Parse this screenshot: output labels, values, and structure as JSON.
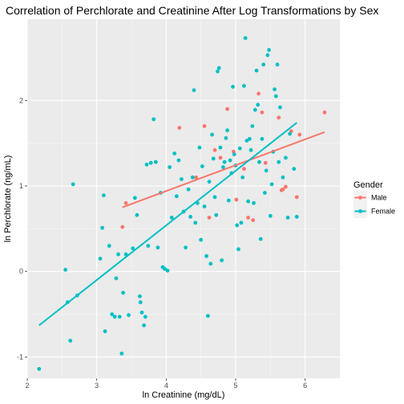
{
  "chart_data": {
    "type": "scatter",
    "title": "Correlation of Perchlorate and Creatinine After Log Transformations by Sex",
    "xlabel": "ln Creatinine (mg/dL)",
    "ylabel": "ln Perchlorate (ng/mL)",
    "xlim": [
      2.0,
      6.5
    ],
    "ylim": [
      -1.25,
      2.95
    ],
    "x_ticks": [
      2,
      3,
      4,
      5,
      6
    ],
    "y_ticks": [
      -1,
      0,
      1,
      2
    ],
    "grid": true,
    "legend": {
      "title": "Gender",
      "placement": "right"
    },
    "colors": {
      "Male": "#F8766D",
      "Female": "#00BFC4"
    },
    "series": [
      {
        "name": "Male",
        "color": "#F8766D",
        "points": [
          [
            3.37,
            0.52
          ],
          [
            3.42,
            0.8
          ],
          [
            4.19,
            1.68
          ],
          [
            4.43,
            1.1
          ],
          [
            4.55,
            1.7
          ],
          [
            4.62,
            0.63
          ],
          [
            4.7,
            1.42
          ],
          [
            4.78,
            1.33
          ],
          [
            4.88,
            1.9
          ],
          [
            4.97,
            1.4
          ],
          [
            5.01,
            0.84
          ],
          [
            5.12,
            1.2
          ],
          [
            5.18,
            0.63
          ],
          [
            5.25,
            0.6
          ],
          [
            5.33,
            2.08
          ],
          [
            5.38,
            1.86
          ],
          [
            5.43,
            1.27
          ],
          [
            5.62,
            1.8
          ],
          [
            5.66,
            0.95
          ],
          [
            5.68,
            0.96
          ],
          [
            5.72,
            0.99
          ],
          [
            5.8,
            1.64
          ],
          [
            5.88,
            0.87
          ],
          [
            5.92,
            1.6
          ],
          [
            6.28,
            1.86
          ]
        ],
        "fit_line": [
          [
            3.37,
            0.75
          ],
          [
            6.28,
            1.63
          ]
        ]
      },
      {
        "name": "Female",
        "color": "#00BFC4",
        "points": [
          [
            2.17,
            -1.14
          ],
          [
            2.55,
            0.02
          ],
          [
            2.58,
            -0.36
          ],
          [
            2.62,
            -0.81
          ],
          [
            2.66,
            1.02
          ],
          [
            2.72,
            -0.28
          ],
          [
            3.05,
            0.15
          ],
          [
            3.08,
            0.51
          ],
          [
            3.1,
            0.89
          ],
          [
            3.12,
            -0.7
          ],
          [
            3.18,
            0.3
          ],
          [
            3.22,
            -0.5
          ],
          [
            3.26,
            -0.53
          ],
          [
            3.28,
            -0.08
          ],
          [
            3.31,
            0.2
          ],
          [
            3.33,
            -0.53
          ],
          [
            3.36,
            -0.96
          ],
          [
            3.38,
            -0.25
          ],
          [
            3.42,
            0.2
          ],
          [
            3.46,
            -0.51
          ],
          [
            3.52,
            0.27
          ],
          [
            3.55,
            0.86
          ],
          [
            3.58,
            0.66
          ],
          [
            3.62,
            -0.29
          ],
          [
            3.63,
            -0.36
          ],
          [
            3.65,
            -0.48
          ],
          [
            3.68,
            -0.63
          ],
          [
            3.7,
            -0.53
          ],
          [
            3.72,
            1.25
          ],
          [
            3.74,
            0.3
          ],
          [
            3.78,
            1.27
          ],
          [
            3.82,
            1.78
          ],
          [
            3.85,
            1.28
          ],
          [
            3.88,
            0.28
          ],
          [
            3.92,
            0.92
          ],
          [
            3.95,
            0.05
          ],
          [
            3.98,
            0.03
          ],
          [
            4.02,
            0.01
          ],
          [
            4.05,
            1.22
          ],
          [
            4.08,
            0.63
          ],
          [
            4.12,
            1.38
          ],
          [
            4.15,
            0.88
          ],
          [
            4.18,
            1.3
          ],
          [
            4.22,
            1.08
          ],
          [
            4.25,
            0.7
          ],
          [
            4.28,
            0.28
          ],
          [
            4.32,
            0.96
          ],
          [
            4.35,
            0.64
          ],
          [
            4.38,
            1.1
          ],
          [
            4.4,
            2.12
          ],
          [
            4.42,
            0.57
          ],
          [
            4.45,
            0.8
          ],
          [
            4.48,
            1.45
          ],
          [
            4.5,
            0.37
          ],
          [
            4.52,
            1.23
          ],
          [
            4.55,
            0.76
          ],
          [
            4.58,
            0.18
          ],
          [
            4.6,
            -0.52
          ],
          [
            4.62,
            1.05
          ],
          [
            4.64,
            0.09
          ],
          [
            4.66,
            1.6
          ],
          [
            4.68,
            1.32
          ],
          [
            4.7,
            0.87
          ],
          [
            4.72,
            0.66
          ],
          [
            4.74,
            2.34
          ],
          [
            4.76,
            2.38
          ],
          [
            4.78,
            1.45
          ],
          [
            4.8,
            0.13
          ],
          [
            4.82,
            1.22
          ],
          [
            4.84,
            1.28
          ],
          [
            4.86,
            1.56
          ],
          [
            4.88,
            1.65
          ],
          [
            4.9,
            0.83
          ],
          [
            4.92,
            1.3
          ],
          [
            4.94,
            1.15
          ],
          [
            4.96,
            2.16
          ],
          [
            4.98,
            1.37
          ],
          [
            5.0,
            1.24
          ],
          [
            5.02,
            0.54
          ],
          [
            5.04,
            0.26
          ],
          [
            5.06,
            1.44
          ],
          [
            5.08,
            0.57
          ],
          [
            5.1,
            1.1
          ],
          [
            5.12,
            2.17
          ],
          [
            5.14,
            2.73
          ],
          [
            5.16,
            1.53
          ],
          [
            5.18,
            0.82
          ],
          [
            5.2,
            1.55
          ],
          [
            5.22,
            1.42
          ],
          [
            5.24,
            1.7
          ],
          [
            5.26,
            0.8
          ],
          [
            5.28,
            1.89
          ],
          [
            5.3,
            2.35
          ],
          [
            5.32,
            1.95
          ],
          [
            5.34,
            1.28
          ],
          [
            5.36,
            0.38
          ],
          [
            5.38,
            1.55
          ],
          [
            5.4,
            2.42
          ],
          [
            5.42,
            0.92
          ],
          [
            5.44,
            1.18
          ],
          [
            5.46,
            2.53
          ],
          [
            5.48,
            2.59
          ],
          [
            5.5,
            0.65
          ],
          [
            5.52,
            1.02
          ],
          [
            5.54,
            1.4
          ],
          [
            5.56,
            2.13
          ],
          [
            5.58,
            2.05
          ],
          [
            5.6,
            2.42
          ],
          [
            5.62,
            1.28
          ],
          [
            5.64,
            1.92
          ],
          [
            5.68,
            1.1
          ],
          [
            5.72,
            1.33
          ],
          [
            5.75,
            0.63
          ],
          [
            5.78,
            1.61
          ],
          [
            5.84,
            1.2
          ],
          [
            5.88,
            0.64
          ]
        ],
        "fit_line": [
          [
            2.17,
            -0.63
          ],
          [
            5.88,
            1.74
          ]
        ]
      }
    ]
  }
}
